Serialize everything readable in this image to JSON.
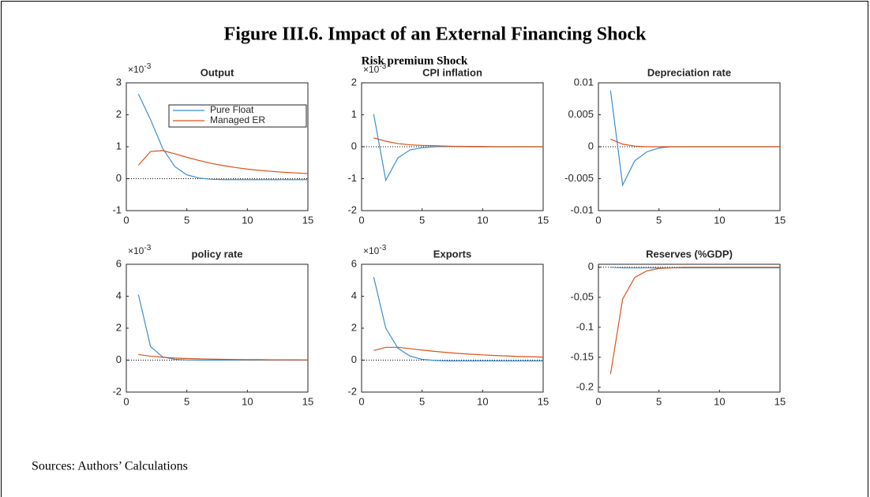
{
  "title": "Figure III.6. Impact of an External Financing Shock",
  "subtitle": "Risk premium Shock",
  "source": "Sources: Authors’ Calculations",
  "chart_data": [
    {
      "type": "line",
      "title": "Output",
      "y_multiplier": "×10",
      "y_multiplier_exp": "-3",
      "xlim": [
        0,
        15
      ],
      "xticks": [
        0,
        5,
        10,
        15
      ],
      "ylim": [
        -1,
        3
      ],
      "yticks": [
        -1,
        0,
        1,
        2,
        3
      ],
      "grid": false,
      "legend": "upper right",
      "x": [
        1,
        2,
        3,
        4,
        5,
        6,
        7,
        8,
        9,
        10,
        11,
        12,
        13,
        14,
        15
      ],
      "series": [
        {
          "name": "Pure Float",
          "color": "#3a8fd0",
          "values": [
            2.65,
            1.85,
            0.95,
            0.38,
            0.12,
            0.02,
            -0.02,
            -0.03,
            -0.03,
            -0.03,
            -0.03,
            -0.03,
            -0.03,
            -0.03,
            -0.03
          ]
        },
        {
          "name": "Managed ER",
          "color": "#d95319",
          "values": [
            0.42,
            0.85,
            0.88,
            0.78,
            0.67,
            0.57,
            0.48,
            0.41,
            0.35,
            0.3,
            0.26,
            0.23,
            0.2,
            0.18,
            0.16
          ]
        }
      ]
    },
    {
      "type": "line",
      "title": "CPI inflation",
      "y_multiplier": "×10",
      "y_multiplier_exp": "-3",
      "xlim": [
        0,
        15
      ],
      "xticks": [
        0,
        5,
        10,
        15
      ],
      "ylim": [
        -2,
        2
      ],
      "yticks": [
        -2,
        -1,
        0,
        1,
        2
      ],
      "grid": false,
      "x": [
        1,
        2,
        3,
        4,
        5,
        6,
        7,
        8,
        9,
        10,
        11,
        12,
        13,
        14,
        15
      ],
      "series": [
        {
          "color": "#3a8fd0",
          "values": [
            1.02,
            -1.05,
            -0.35,
            -0.1,
            -0.03,
            0,
            0.01,
            0.01,
            0,
            0,
            0,
            0,
            0,
            0,
            0
          ]
        },
        {
          "color": "#d95319",
          "values": [
            0.28,
            0.17,
            0.1,
            0.06,
            0.04,
            0.03,
            0.02,
            0.01,
            0.01,
            0.01,
            0,
            0,
            0,
            0,
            0
          ]
        }
      ]
    },
    {
      "type": "line",
      "title": "Depreciation rate",
      "xlim": [
        0,
        15
      ],
      "xticks": [
        0,
        5,
        10,
        15
      ],
      "ylim": [
        -0.01,
        0.01
      ],
      "yticks": [
        -0.01,
        -0.005,
        0,
        0.005,
        0.01
      ],
      "grid": false,
      "x": [
        1,
        2,
        3,
        4,
        5,
        6,
        7,
        8,
        9,
        10,
        11,
        12,
        13,
        14,
        15
      ],
      "series": [
        {
          "color": "#3a8fd0",
          "values": [
            0.0088,
            -0.006,
            -0.0022,
            -0.0008,
            -0.0002,
            0,
            0,
            0,
            0,
            0,
            0,
            0,
            0,
            0,
            0
          ]
        },
        {
          "color": "#d95319",
          "values": [
            0.0012,
            0.0004,
            0.0001,
            0,
            0,
            0,
            0,
            0,
            0,
            0,
            0,
            0,
            0,
            0,
            0
          ]
        }
      ]
    },
    {
      "type": "line",
      "title": "policy rate",
      "y_multiplier": "×10",
      "y_multiplier_exp": "-3",
      "xlim": [
        0,
        15
      ],
      "xticks": [
        0,
        5,
        10,
        15
      ],
      "ylim": [
        -2,
        6
      ],
      "yticks": [
        -2,
        0,
        2,
        4,
        6
      ],
      "grid": false,
      "x": [
        1,
        2,
        3,
        4,
        5,
        6,
        7,
        8,
        9,
        10,
        11,
        12,
        13,
        14,
        15
      ],
      "series": [
        {
          "color": "#3a8fd0",
          "values": [
            4.1,
            0.85,
            0.2,
            0.05,
            0.01,
            0,
            0,
            0,
            0,
            0,
            0,
            0,
            0,
            0,
            0
          ]
        },
        {
          "color": "#d95319",
          "values": [
            0.35,
            0.25,
            0.18,
            0.13,
            0.1,
            0.08,
            0.06,
            0.05,
            0.04,
            0.03,
            0.03,
            0.02,
            0.02,
            0.02,
            0.01
          ]
        }
      ]
    },
    {
      "type": "line",
      "title": "Exports",
      "y_multiplier": "×10",
      "y_multiplier_exp": "-3",
      "xlim": [
        0,
        15
      ],
      "xticks": [
        0,
        5,
        10,
        15
      ],
      "ylim": [
        -2,
        6
      ],
      "yticks": [
        -2,
        0,
        2,
        4,
        6
      ],
      "grid": false,
      "x": [
        1,
        2,
        3,
        4,
        5,
        6,
        7,
        8,
        9,
        10,
        11,
        12,
        13,
        14,
        15
      ],
      "series": [
        {
          "color": "#3a8fd0",
          "values": [
            5.2,
            2.0,
            0.75,
            0.25,
            0.05,
            -0.02,
            -0.05,
            -0.05,
            -0.05,
            -0.05,
            -0.05,
            -0.05,
            -0.05,
            -0.05,
            -0.05
          ]
        },
        {
          "color": "#d95319",
          "values": [
            0.6,
            0.8,
            0.8,
            0.72,
            0.63,
            0.55,
            0.48,
            0.42,
            0.37,
            0.33,
            0.29,
            0.26,
            0.23,
            0.21,
            0.19
          ]
        }
      ]
    },
    {
      "type": "line",
      "title": "Reserves (%GDP)",
      "xlim": [
        0,
        15
      ],
      "xticks": [
        0,
        5,
        10,
        15
      ],
      "ylim": [
        -0.208,
        0.005
      ],
      "yticks": [
        -0.2,
        -0.15,
        -0.1,
        -0.05,
        0
      ],
      "grid": false,
      "x": [
        1,
        2,
        3,
        4,
        5,
        6,
        7,
        8,
        9,
        10,
        11,
        12,
        13,
        14,
        15
      ],
      "series": [
        {
          "color": "#3a8fd0",
          "values": [
            0,
            -0.001,
            -0.001,
            -0.001,
            -0.001,
            -0.001,
            -0.001,
            -0.001,
            -0.001,
            -0.001,
            -0.001,
            -0.001,
            -0.001,
            -0.001,
            -0.001
          ]
        },
        {
          "color": "#d95319",
          "values": [
            -0.178,
            -0.053,
            -0.017,
            -0.006,
            -0.002,
            -0.001,
            0,
            0,
            0,
            0,
            0,
            0,
            0,
            0,
            0
          ]
        }
      ]
    }
  ]
}
